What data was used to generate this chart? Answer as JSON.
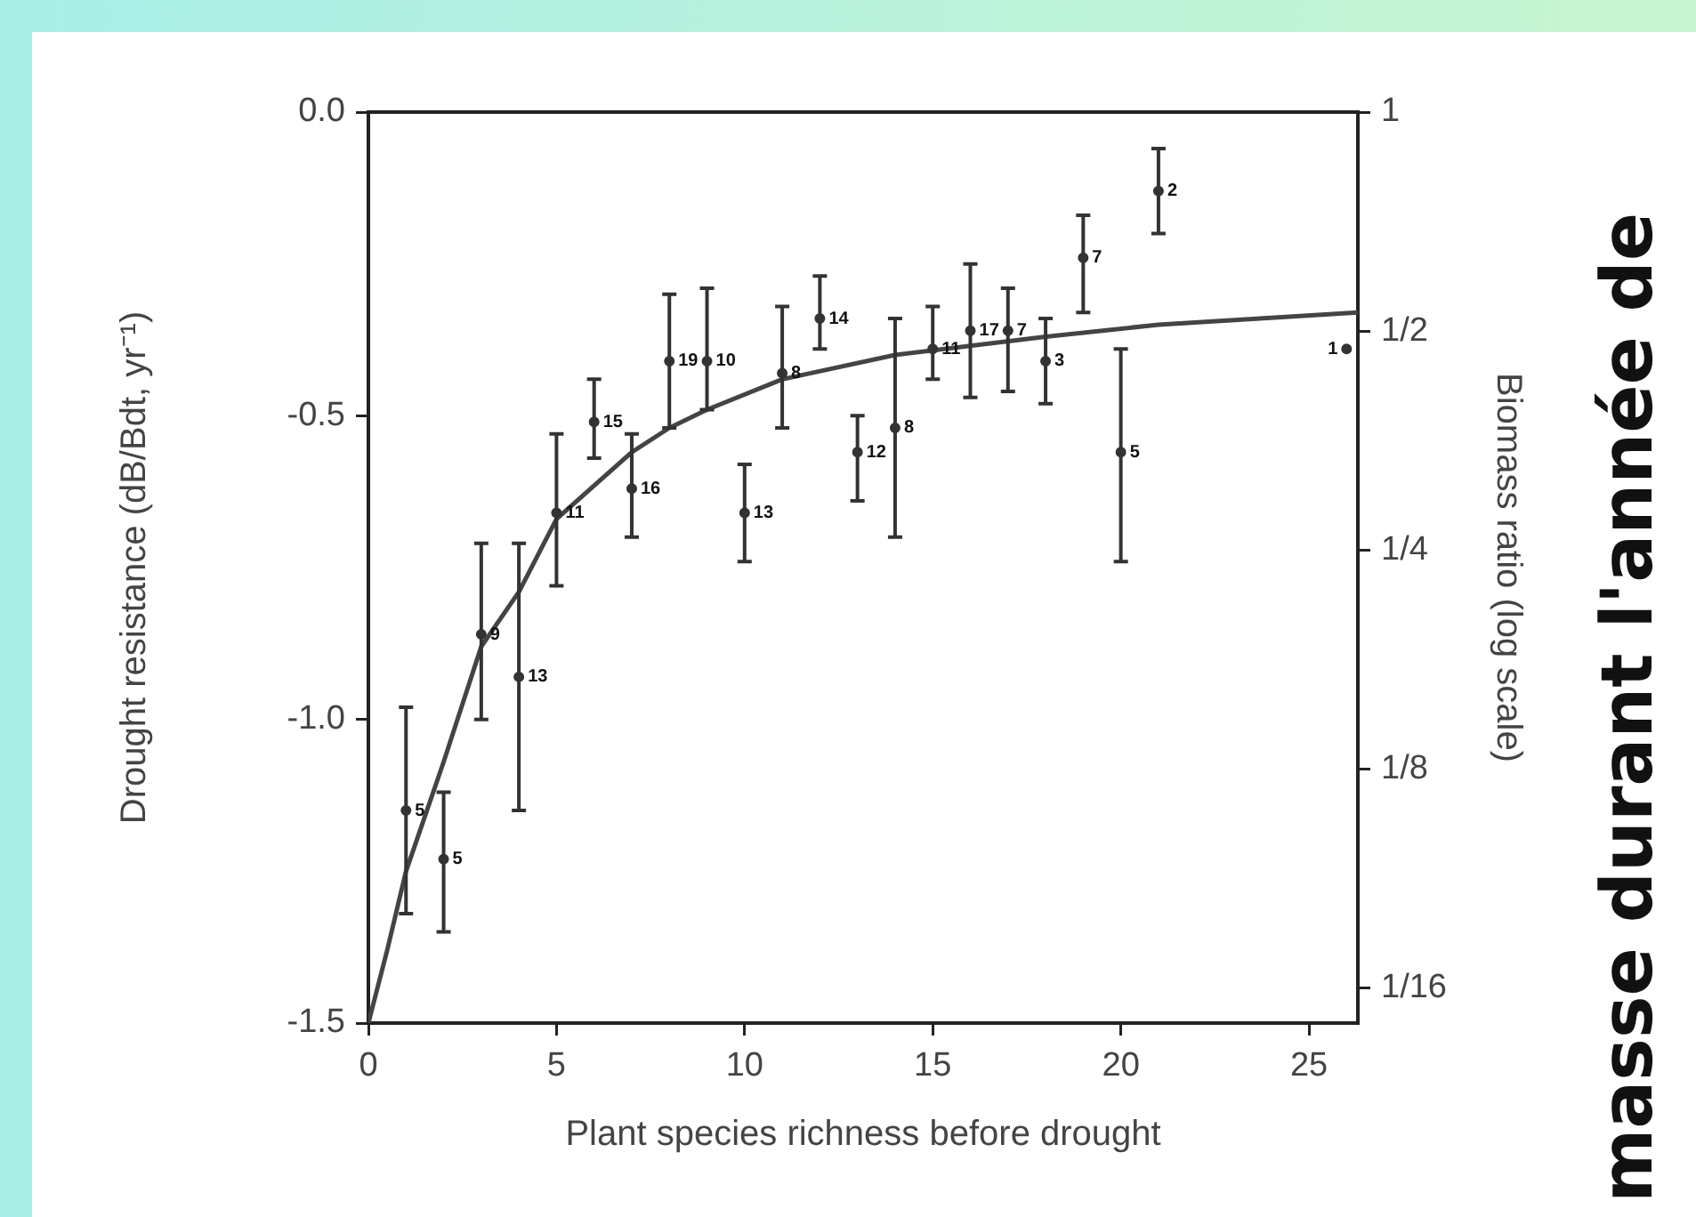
{
  "chart_data": {
    "type": "scatter",
    "xlabel": "Plant species richness before drought",
    "ylabel": "Drought resistance (dB/Bdt, yr⁻¹)",
    "y2label": "Biomass ratio (log scale)",
    "xlim": [
      0,
      26.3
    ],
    "xticks": [
      0,
      5,
      10,
      15,
      20,
      25
    ],
    "ylim": [
      -1.5,
      0
    ],
    "yticks": [
      {
        "value": 0,
        "label": "0.0"
      },
      {
        "value": -0.5,
        "label": "-0.5"
      },
      {
        "value": -1,
        "label": "-1.0"
      },
      {
        "value": -1.5,
        "label": "-1.5"
      }
    ],
    "y2lim": [
      0.056,
      1
    ],
    "log": "y2",
    "y2ticks": [
      1,
      {
        "value": 0.5,
        "label": "1/2"
      },
      {
        "value": 0.25,
        "label": "1/4"
      },
      {
        "value": 0.125,
        "label": "1/8"
      },
      {
        "value": 0.0625,
        "label": "1/16"
      }
    ],
    "x": [
      1,
      2,
      3,
      4,
      5,
      6,
      7,
      8,
      9,
      10,
      11,
      12,
      13,
      14,
      15,
      16,
      17,
      18,
      19,
      20,
      21,
      26
    ],
    "series": [
      {
        "color": "#333333",
        "marker": "circle",
        "values": [
          -1.15,
          -1.23,
          -0.86,
          -0.93,
          -0.66,
          -0.51,
          -0.62,
          -0.41,
          -0.41,
          -0.66,
          -0.43,
          -0.34,
          -0.56,
          -0.52,
          -0.39,
          -0.36,
          -0.36,
          -0.41,
          -0.24,
          -0.56,
          -0.13,
          -0.39
        ],
        "errors": [
          [
            -1.32,
            -0.98
          ],
          [
            -1.35,
            -1.12
          ],
          [
            -1.0,
            -0.71
          ],
          [
            -1.15,
            -0.71
          ],
          [
            -0.78,
            -0.53
          ],
          [
            -0.57,
            -0.44
          ],
          [
            -0.7,
            -0.53
          ],
          [
            -0.52,
            -0.3
          ],
          [
            -0.49,
            -0.29
          ],
          [
            -0.74,
            -0.58
          ],
          [
            -0.52,
            -0.32
          ],
          [
            -0.39,
            -0.27
          ],
          [
            -0.64,
            -0.5
          ],
          [
            -0.7,
            -0.34
          ],
          [
            -0.44,
            -0.32
          ],
          [
            -0.47,
            -0.25
          ],
          [
            -0.46,
            -0.29
          ],
          [
            -0.48,
            -0.34
          ],
          [
            -0.33,
            -0.17
          ],
          [
            -0.74,
            -0.39
          ],
          [
            -0.2,
            -0.06
          ],
          null
        ]
      },
      {
        "type": "line",
        "marker": "none",
        "color": "#444444",
        "x": [
          0,
          0.5,
          1,
          2,
          3,
          4,
          5,
          7,
          8,
          9,
          11,
          14,
          18,
          21,
          26.3
        ],
        "values": [
          -1.5,
          -1.38,
          -1.25,
          -1.07,
          -0.88,
          -0.79,
          -0.67,
          -0.56,
          -0.52,
          -0.49,
          -0.44,
          -0.4,
          -0.37,
          -0.35,
          -0.33
        ]
      }
    ],
    "annotations": [
      {
        "text": "5",
        "x": 1,
        "y": -1.15
      },
      {
        "text": "5",
        "x": 2,
        "y": -1.23
      },
      {
        "text": "9",
        "x": 3,
        "y": -0.86
      },
      {
        "text": "13",
        "x": 4,
        "y": -0.93
      },
      {
        "text": "11",
        "x": 5,
        "y": -0.66
      },
      {
        "text": "15",
        "x": 6,
        "y": -0.51
      },
      {
        "text": "16",
        "x": 7,
        "y": -0.62
      },
      {
        "text": "19",
        "x": 8,
        "y": -0.41
      },
      {
        "text": "10",
        "x": 9,
        "y": -0.41
      },
      {
        "text": "13",
        "x": 10,
        "y": -0.66
      },
      {
        "text": "8",
        "x": 11,
        "y": -0.43
      },
      {
        "text": "14",
        "x": 12,
        "y": -0.34
      },
      {
        "text": "12",
        "x": 13,
        "y": -0.56
      },
      {
        "text": "8",
        "x": 14,
        "y": -0.52
      },
      {
        "text": "11",
        "x": 15,
        "y": -0.39
      },
      {
        "text": "17",
        "x": 16,
        "y": -0.36
      },
      {
        "text": "7",
        "x": 17,
        "y": -0.36
      },
      {
        "text": "3",
        "x": 18,
        "y": -0.41
      },
      {
        "text": "7",
        "x": 19,
        "y": -0.24
      },
      {
        "text": "5",
        "x": 20,
        "y": -0.56
      },
      {
        "text": "2",
        "x": 21,
        "y": -0.13
      },
      {
        "text": "1",
        "x": 26,
        "y": -0.39
      },
      "masse durant l'année de"
    ]
  }
}
